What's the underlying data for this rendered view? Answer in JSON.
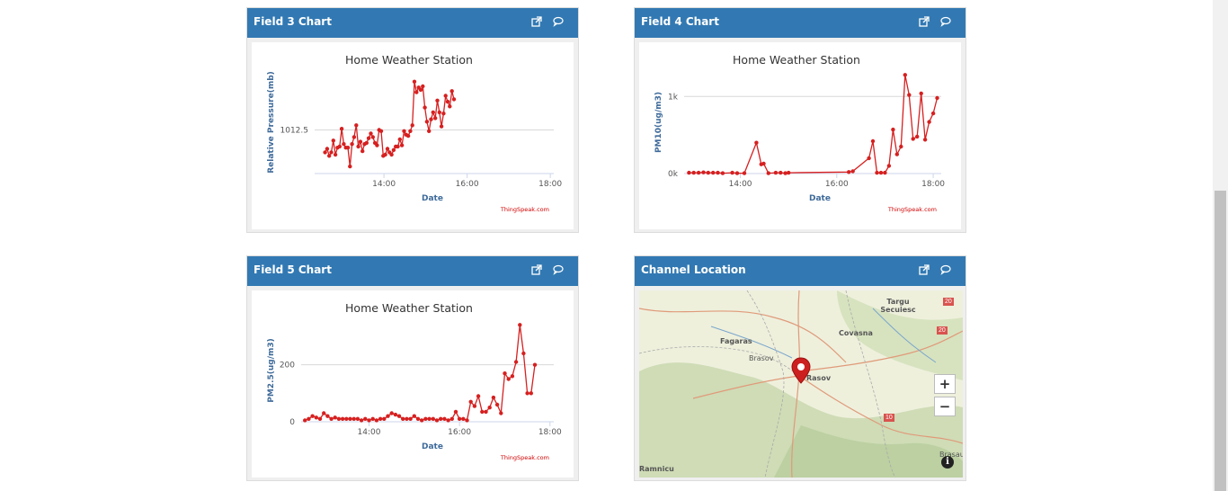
{
  "colors": {
    "header_bg": "#3279b3",
    "series_line": "#d62020",
    "axis_text": "#3e6a9a",
    "credit_text": "#d00000",
    "map_marker": "#cc1f1f"
  },
  "header_icons": [
    "popout-icon",
    "comment-icon"
  ],
  "widgets": {
    "field3": {
      "title": "Field 3 Chart",
      "chart_data": {
        "type": "line",
        "title": "Home Weather Station",
        "xlabel": "Date",
        "ylabel": "Relative Pressure(mb)",
        "x_ticks": [
          "14:00",
          "16:00",
          "18:00"
        ],
        "y_ticks": [
          "1012.5"
        ],
        "grid": true,
        "credit": "ThingSpeak.com",
        "series": [
          {
            "points": [
              [
                "12:35",
                1010.6
              ],
              [
                "12:38",
                1010.9
              ],
              [
                "12:41",
                1010.3
              ],
              [
                "12:44",
                1010.6
              ],
              [
                "12:47",
                1011.6
              ],
              [
                "12:50",
                1010.4
              ],
              [
                "12:53",
                1011.0
              ],
              [
                "12:56",
                1011.1
              ],
              [
                "12:59",
                1012.6
              ],
              [
                "13:02",
                1011.3
              ],
              [
                "13:05",
                1011.0
              ],
              [
                "13:08",
                1011.0
              ],
              [
                "13:11",
                1009.4
              ],
              [
                "13:14",
                1011.3
              ],
              [
                "13:17",
                1011.9
              ],
              [
                "13:20",
                1012.9
              ],
              [
                "13:23",
                1011.1
              ],
              [
                "13:26",
                1011.5
              ],
              [
                "13:29",
                1010.7
              ],
              [
                "13:32",
                1011.3
              ],
              [
                "13:35",
                1011.4
              ],
              [
                "13:38",
                1011.8
              ],
              [
                "13:41",
                1012.2
              ],
              [
                "13:44",
                1011.9
              ],
              [
                "13:47",
                1011.4
              ],
              [
                "13:50",
                1011.2
              ],
              [
                "13:53",
                1012.5
              ],
              [
                "13:56",
                1012.4
              ],
              [
                "13:59",
                1010.3
              ],
              [
                "14:02",
                1010.4
              ],
              [
                "14:05",
                1010.9
              ],
              [
                "14:08",
                1010.6
              ],
              [
                "14:11",
                1010.4
              ],
              [
                "14:14",
                1010.8
              ],
              [
                "14:17",
                1011.1
              ],
              [
                "14:20",
                1011.1
              ],
              [
                "14:23",
                1011.7
              ],
              [
                "14:26",
                1011.2
              ],
              [
                "14:29",
                1012.4
              ],
              [
                "14:32",
                1012.1
              ],
              [
                "14:35",
                1012.0
              ],
              [
                "14:38",
                1012.4
              ],
              [
                "14:41",
                1012.9
              ],
              [
                "14:44",
                1016.6
              ],
              [
                "14:47",
                1015.7
              ],
              [
                "14:50",
                1016.1
              ],
              [
                "14:53",
                1015.9
              ],
              [
                "14:56",
                1016.2
              ],
              [
                "14:59",
                1014.4
              ],
              [
                "15:02",
                1013.2
              ],
              [
                "15:05",
                1012.4
              ],
              [
                "15:08",
                1013.4
              ],
              [
                "15:11",
                1014.0
              ],
              [
                "15:14",
                1013.5
              ],
              [
                "15:17",
                1015.0
              ],
              [
                "15:20",
                1014.0
              ],
              [
                "15:23",
                1012.8
              ],
              [
                "15:26",
                1013.9
              ],
              [
                "15:29",
                1015.4
              ],
              [
                "15:32",
                1014.9
              ],
              [
                "15:35",
                1014.5
              ],
              [
                "15:38",
                1015.8
              ],
              [
                "15:41",
                1015.1
              ]
            ]
          }
        ]
      }
    },
    "field4": {
      "title": "Field 4 Chart",
      "chart_data": {
        "type": "line",
        "title": "Home Weather Station",
        "xlabel": "Date",
        "ylabel": "PM10(ug/m3)",
        "x_ticks": [
          "14:00",
          "16:00",
          "18:00"
        ],
        "y_ticks": [
          "0k",
          "1k"
        ],
        "grid": true,
        "credit": "ThingSpeak.com",
        "series": [
          {
            "points": [
              [
                "12:56",
                10
              ],
              [
                "13:02",
                10
              ],
              [
                "13:08",
                10
              ],
              [
                "13:14",
                15
              ],
              [
                "13:20",
                10
              ],
              [
                "13:26",
                10
              ],
              [
                "13:32",
                10
              ],
              [
                "13:38",
                5
              ],
              [
                "13:50",
                10
              ],
              [
                "13:56",
                5
              ],
              [
                "14:05",
                5
              ],
              [
                "14:20",
                400
              ],
              [
                "14:26",
                120
              ],
              [
                "14:29",
                130
              ],
              [
                "14:35",
                5
              ],
              [
                "14:44",
                10
              ],
              [
                "14:50",
                10
              ],
              [
                "14:56",
                5
              ],
              [
                "15:00",
                10
              ],
              [
                "16:15",
                20
              ],
              [
                "16:20",
                30
              ],
              [
                "16:40",
                200
              ],
              [
                "16:45",
                420
              ],
              [
                "16:50",
                10
              ],
              [
                "16:55",
                10
              ],
              [
                "17:00",
                10
              ],
              [
                "17:05",
                100
              ],
              [
                "17:10",
                570
              ],
              [
                "17:15",
                250
              ],
              [
                "17:20",
                350
              ],
              [
                "17:25",
                1280
              ],
              [
                "17:30",
                1020
              ],
              [
                "17:35",
                450
              ],
              [
                "17:40",
                480
              ],
              [
                "17:45",
                1040
              ],
              [
                "17:50",
                440
              ],
              [
                "17:55",
                670
              ],
              [
                "18:00",
                780
              ],
              [
                "18:05",
                980
              ]
            ]
          }
        ]
      }
    },
    "field5": {
      "title": "Field 5 Chart",
      "chart_data": {
        "type": "line",
        "title": "Home Weather Station",
        "xlabel": "Date",
        "ylabel": "PM2.5(ug/m3)",
        "x_ticks": [
          "14:00",
          "16:00",
          "18:00"
        ],
        "y_ticks": [
          "0",
          "200"
        ],
        "grid": true,
        "credit": "ThingSpeak.com",
        "series": [
          {
            "points": [
              [
                "12:35",
                5
              ],
              [
                "12:40",
                10
              ],
              [
                "12:45",
                20
              ],
              [
                "12:50",
                15
              ],
              [
                "12:55",
                10
              ],
              [
                "13:00",
                30
              ],
              [
                "13:05",
                20
              ],
              [
                "13:10",
                10
              ],
              [
                "13:15",
                15
              ],
              [
                "13:20",
                10
              ],
              [
                "13:25",
                10
              ],
              [
                "13:30",
                10
              ],
              [
                "13:35",
                10
              ],
              [
                "13:40",
                10
              ],
              [
                "13:45",
                10
              ],
              [
                "13:50",
                5
              ],
              [
                "13:55",
                10
              ],
              [
                "14:00",
                5
              ],
              [
                "14:05",
                10
              ],
              [
                "14:10",
                5
              ],
              [
                "14:15",
                10
              ],
              [
                "14:20",
                10
              ],
              [
                "14:25",
                20
              ],
              [
                "14:30",
                30
              ],
              [
                "14:35",
                25
              ],
              [
                "14:40",
                20
              ],
              [
                "14:45",
                10
              ],
              [
                "14:50",
                10
              ],
              [
                "14:55",
                10
              ],
              [
                "15:00",
                20
              ],
              [
                "15:05",
                10
              ],
              [
                "15:10",
                5
              ],
              [
                "15:15",
                10
              ],
              [
                "15:20",
                10
              ],
              [
                "15:25",
                10
              ],
              [
                "15:30",
                5
              ],
              [
                "15:35",
                10
              ],
              [
                "15:40",
                10
              ],
              [
                "15:45",
                5
              ],
              [
                "15:50",
                10
              ],
              [
                "15:55",
                35
              ],
              [
                "16:00",
                10
              ],
              [
                "16:05",
                10
              ],
              [
                "16:10",
                5
              ],
              [
                "16:15",
                70
              ],
              [
                "16:20",
                55
              ],
              [
                "16:25",
                90
              ],
              [
                "16:30",
                35
              ],
              [
                "16:35",
                35
              ],
              [
                "16:40",
                50
              ],
              [
                "16:45",
                85
              ],
              [
                "16:50",
                60
              ],
              [
                "16:55",
                30
              ],
              [
                "17:00",
                170
              ],
              [
                "17:05",
                150
              ],
              [
                "17:10",
                160
              ],
              [
                "17:15",
                210
              ],
              [
                "17:20",
                340
              ],
              [
                "17:25",
                240
              ],
              [
                "17:30",
                100
              ],
              [
                "17:35",
                100
              ],
              [
                "17:40",
                200
              ]
            ]
          }
        ]
      }
    },
    "location": {
      "title": "Channel Location",
      "map": {
        "places": [
          "Targu Secuiesc",
          "Fagaras",
          "Covasna",
          "Brasov",
          "Rasov",
          "Ramnicu",
          "Brasau"
        ],
        "road_badges": [
          "20",
          "10",
          "20"
        ],
        "zoom_in_label": "+",
        "zoom_out_label": "−",
        "info_label": "i",
        "marker_icon": "map-marker-icon"
      }
    }
  }
}
